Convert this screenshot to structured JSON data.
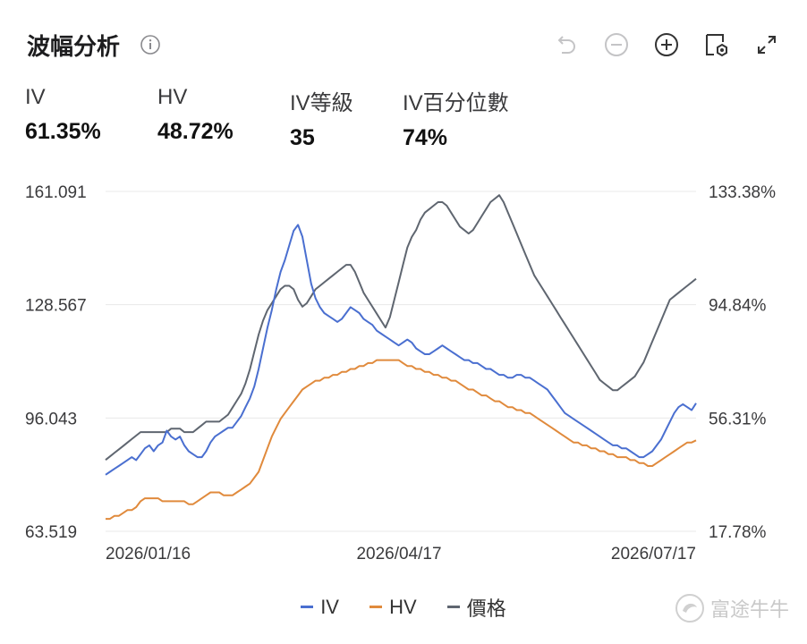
{
  "header": {
    "title": "波幅分析"
  },
  "stats": [
    {
      "label": "IV",
      "value": "61.35%"
    },
    {
      "label": "HV",
      "value": "48.72%"
    },
    {
      "label": "IV等級",
      "value": "35"
    },
    {
      "label": "IV百分位數",
      "value": "74%"
    }
  ],
  "watermark": {
    "text": "富途牛牛"
  },
  "colors": {
    "iv": "#4a6fd0",
    "hv": "#e08a3c",
    "price": "#5f6670",
    "grid": "#e8e8e8"
  },
  "icons": [
    "info-icon",
    "undo-icon",
    "zoom-out-icon",
    "zoom-in-icon",
    "settings-icon",
    "expand-icon"
  ],
  "chart_data": {
    "type": "line",
    "x_tick_labels": [
      "2026/01/16",
      "2026/04/17",
      "2026/07/17"
    ],
    "y_left_ticks": [
      "161.091",
      "128.567",
      "96.043",
      "63.519"
    ],
    "y_right_ticks": [
      "133.38%",
      "94.84%",
      "56.31%",
      "17.78%"
    ],
    "ylim_left": [
      63.519,
      161.091
    ],
    "ylim_right": [
      17.78,
      133.38
    ],
    "grid": true,
    "legend_position": "bottom-center",
    "series": [
      {
        "name": "IV",
        "axis": "right",
        "color": "#4a6fd0",
        "values": [
          37,
          38,
          39,
          40,
          41,
          42,
          43,
          42,
          44,
          46,
          47,
          45,
          47,
          48,
          52,
          50,
          49,
          50,
          47,
          45,
          44,
          43,
          43,
          45,
          48,
          50,
          51,
          52,
          53,
          53,
          55,
          57,
          60,
          63,
          67,
          73,
          80,
          87,
          93,
          100,
          106,
          110,
          115,
          120,
          122,
          118,
          110,
          102,
          97,
          94,
          92,
          91,
          90,
          89,
          90,
          92,
          94,
          93,
          92,
          90,
          89,
          88,
          86,
          85,
          84,
          83,
          82,
          81,
          82,
          83,
          82,
          80,
          79,
          78,
          78,
          79,
          80,
          81,
          80,
          79,
          78,
          77,
          76,
          76,
          75,
          75,
          74,
          73,
          73,
          72,
          71,
          71,
          70,
          70,
          71,
          71,
          70,
          70,
          69,
          68,
          67,
          66,
          64,
          62,
          60,
          58,
          57,
          56,
          55,
          54,
          53,
          52,
          51,
          50,
          49,
          48,
          47,
          47,
          46,
          46,
          45,
          44,
          43,
          43,
          44,
          45,
          47,
          49,
          52,
          55,
          58,
          60,
          61,
          60,
          59,
          61.35
        ]
      },
      {
        "name": "HV",
        "axis": "right",
        "color": "#e08a3c",
        "values": [
          22,
          22,
          23,
          23,
          24,
          25,
          25,
          26,
          28,
          29,
          29,
          29,
          29,
          28,
          28,
          28,
          28,
          28,
          28,
          27,
          27,
          28,
          29,
          30,
          31,
          31,
          31,
          30,
          30,
          30,
          31,
          32,
          33,
          34,
          36,
          38,
          42,
          46,
          50,
          53,
          56,
          58,
          60,
          62,
          64,
          66,
          67,
          68,
          69,
          69,
          70,
          70,
          71,
          71,
          72,
          72,
          73,
          73,
          74,
          74,
          75,
          75,
          76,
          76,
          76,
          76,
          76,
          76,
          75,
          74,
          74,
          73,
          73,
          72,
          72,
          71,
          71,
          70,
          70,
          69,
          69,
          68,
          67,
          66,
          66,
          65,
          64,
          64,
          63,
          62,
          62,
          61,
          60,
          60,
          59,
          59,
          58,
          58,
          57,
          56,
          55,
          54,
          53,
          52,
          51,
          50,
          49,
          48,
          48,
          47,
          47,
          46,
          46,
          45,
          45,
          44,
          44,
          43,
          43,
          43,
          42,
          42,
          41,
          41,
          40,
          40,
          41,
          42,
          43,
          44,
          45,
          46,
          47,
          48,
          48,
          48.72
        ]
      },
      {
        "name": "價格",
        "axis": "left",
        "color": "#5f6670",
        "values": [
          84,
          85,
          86,
          87,
          88,
          89,
          90,
          91,
          92,
          92,
          92,
          92,
          92,
          92,
          92,
          93,
          93,
          93,
          92,
          92,
          92,
          93,
          94,
          95,
          95,
          95,
          95,
          96,
          97,
          99,
          101,
          103,
          106,
          110,
          115,
          120,
          124,
          127,
          129,
          131,
          133,
          134,
          134,
          133,
          130,
          128,
          129,
          131,
          133,
          134,
          135,
          136,
          137,
          138,
          139,
          140,
          140,
          138,
          135,
          132,
          130,
          128,
          126,
          124,
          122,
          125,
          130,
          135,
          140,
          145,
          148,
          150,
          153,
          155,
          156,
          157,
          158,
          158,
          157,
          155,
          153,
          151,
          150,
          149,
          150,
          152,
          154,
          156,
          158,
          159,
          160,
          158,
          155,
          152,
          149,
          146,
          143,
          140,
          137,
          135,
          133,
          131,
          129,
          127,
          125,
          123,
          121,
          119,
          117,
          115,
          113,
          111,
          109,
          107,
          106,
          105,
          104,
          104,
          105,
          106,
          107,
          108,
          110,
          112,
          115,
          118,
          121,
          124,
          127,
          130,
          131,
          132,
          133,
          134,
          135,
          136
        ]
      }
    ]
  }
}
